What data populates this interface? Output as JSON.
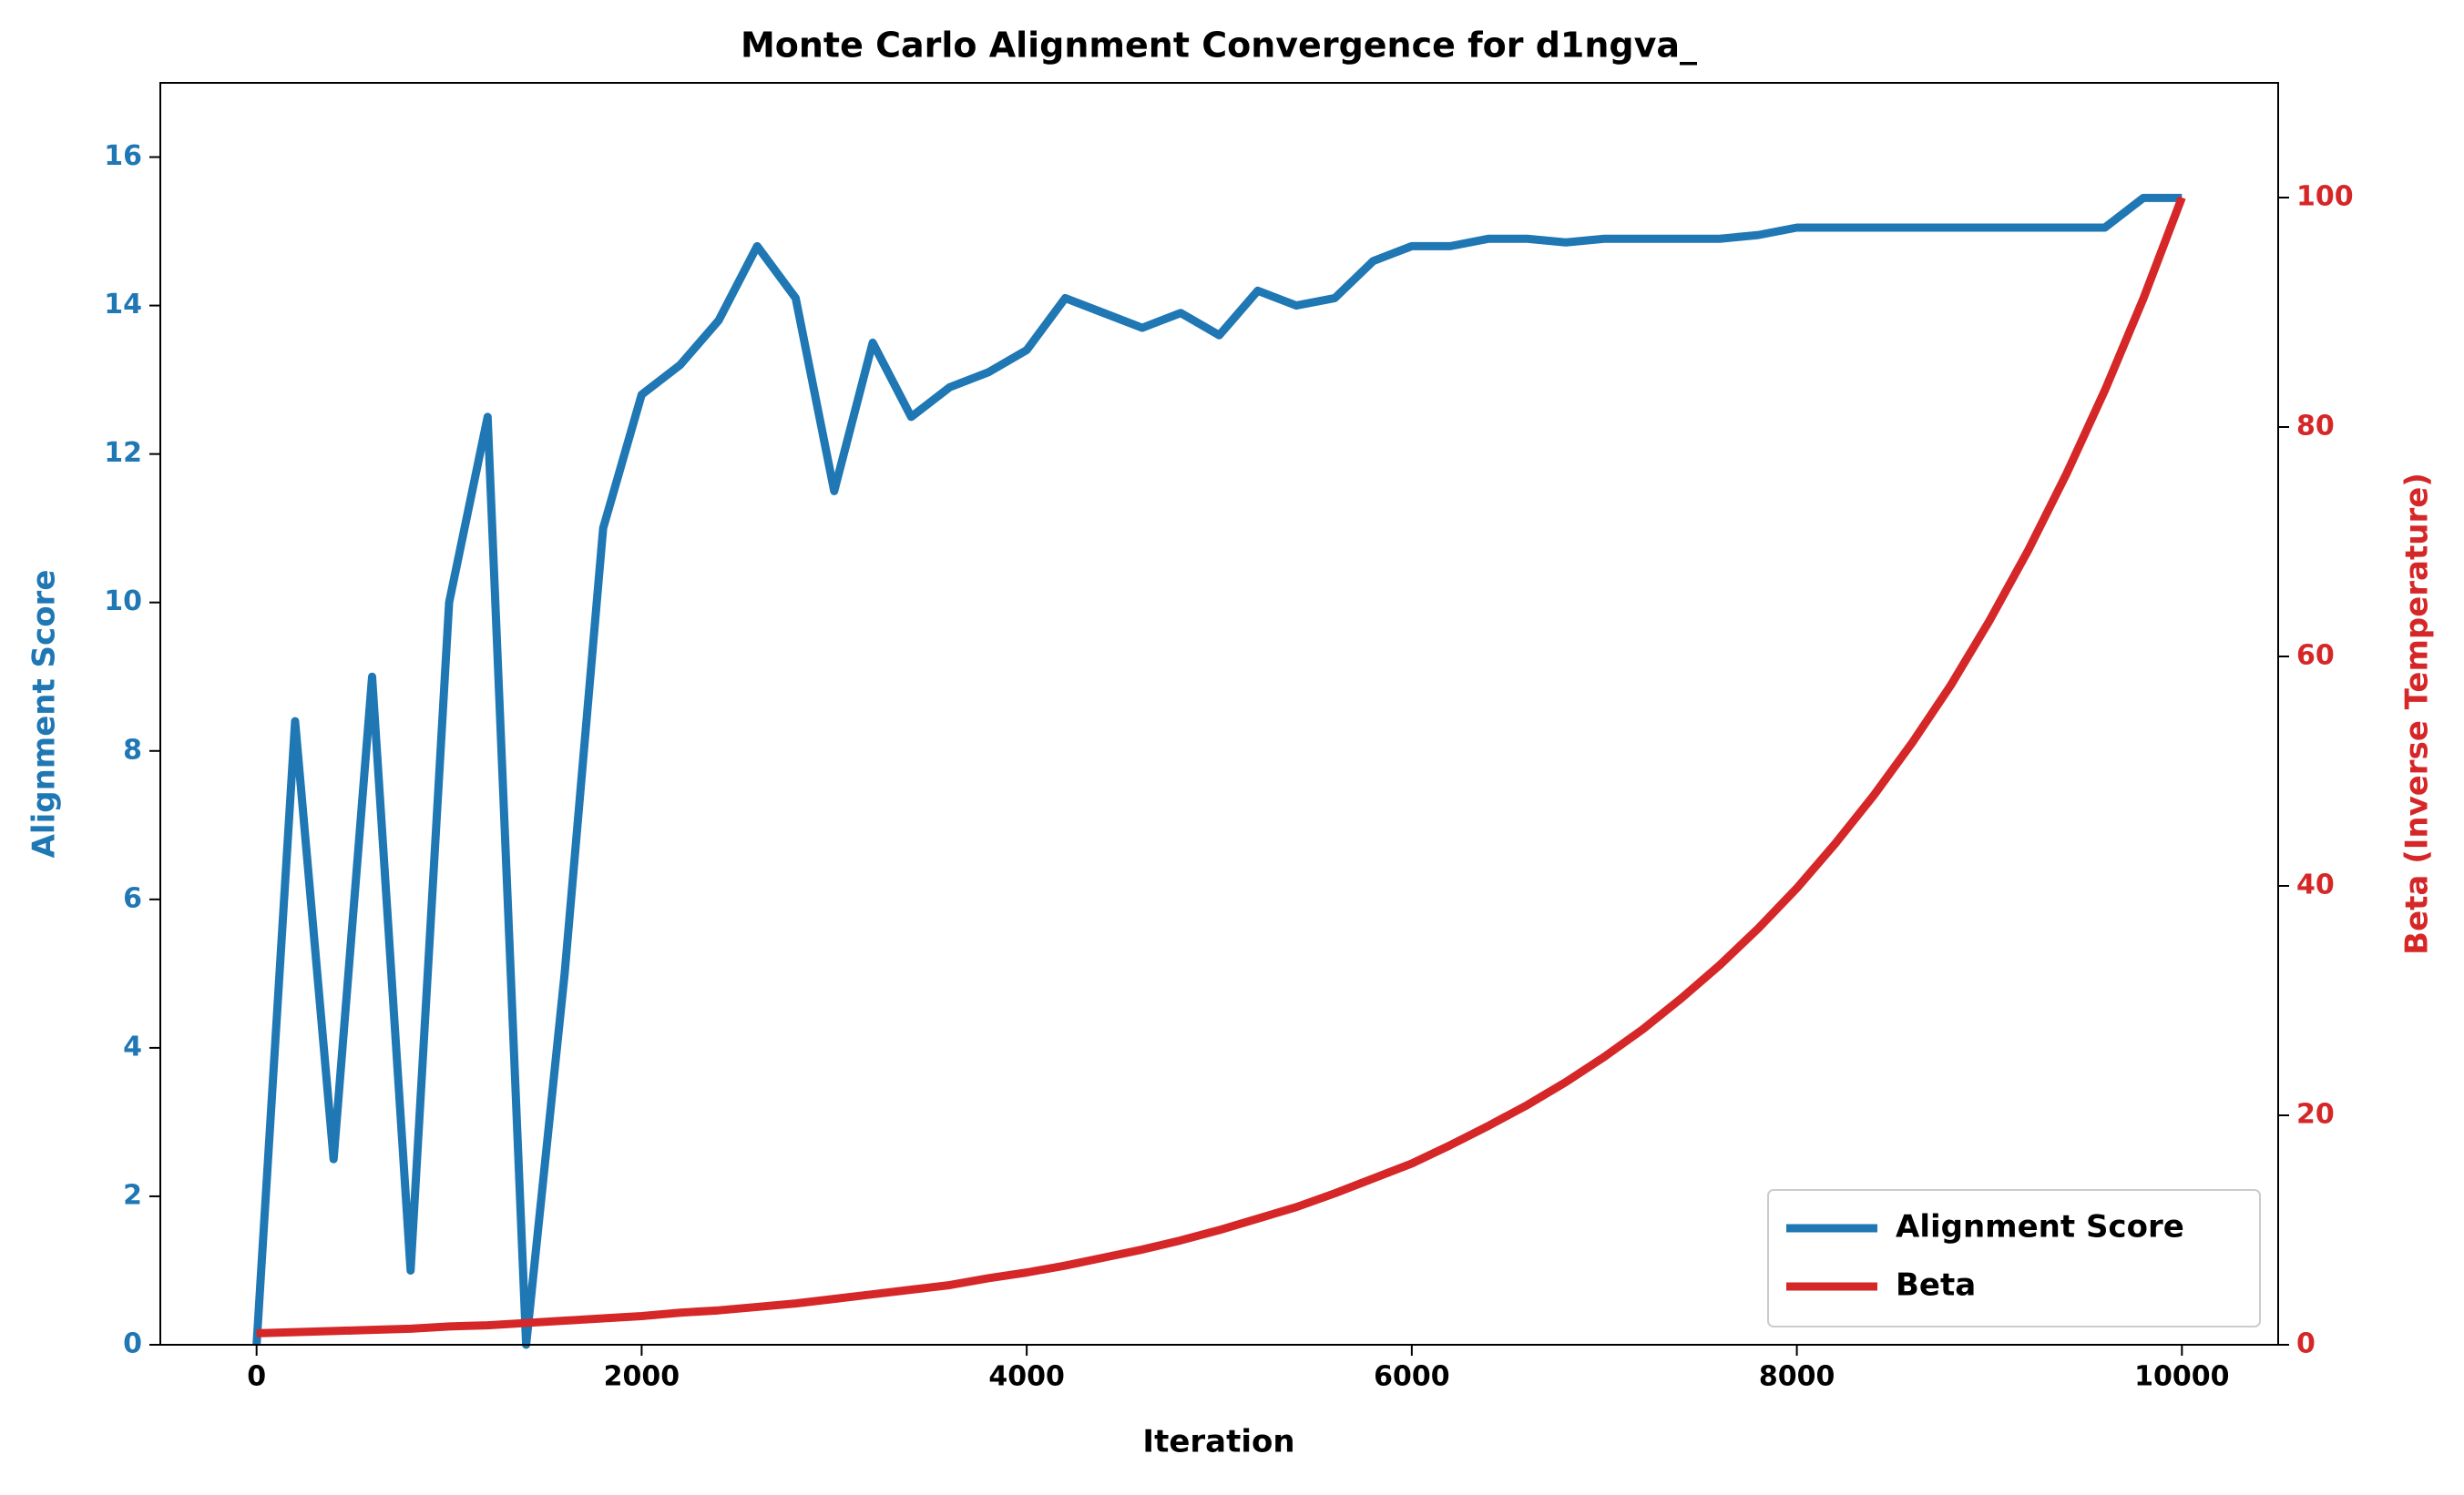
{
  "chart_data": {
    "type": "line",
    "title": "Monte Carlo Alignment Convergence for d1ngva_",
    "x_label": "Iteration",
    "y_label": "Alignment Score",
    "y2_label": "Beta (Inverse Temperature)",
    "x": [
      0,
      200,
      400,
      600,
      800,
      1000,
      1200,
      1400,
      1600,
      1800,
      2000,
      2200,
      2400,
      2600,
      2800,
      3000,
      3200,
      3400,
      3600,
      3800,
      4000,
      4200,
      4400,
      4600,
      4800,
      5000,
      5200,
      5400,
      5600,
      5800,
      6000,
      6200,
      6400,
      6600,
      6800,
      7000,
      7200,
      7400,
      7600,
      7800,
      8000,
      8200,
      8400,
      8600,
      8800,
      9000,
      9200,
      9400,
      9600,
      9800,
      10000
    ],
    "series": [
      {
        "name": "Alignment Score",
        "color": "#1f77b4",
        "axis": "y",
        "values": [
          0,
          8.4,
          2.5,
          9,
          1,
          10,
          12.5,
          0,
          5,
          11,
          12.8,
          13.2,
          13.8,
          14.8,
          14.1,
          11.5,
          13.5,
          12.5,
          12.9,
          13.1,
          13.4,
          14.1,
          13.9,
          13.7,
          13.9,
          13.6,
          14.2,
          14.0,
          14.1,
          14.6,
          14.8,
          14.8,
          14.9,
          14.9,
          14.85,
          14.9,
          14.9,
          14.9,
          14.9,
          14.95,
          15.05,
          15.05,
          15.05,
          15.05,
          15.05,
          15.05,
          15.05,
          15.05,
          15.05,
          15.45,
          15.45
        ]
      },
      {
        "name": "Beta",
        "color": "#d62728",
        "axis": "y2",
        "values": [
          1.0,
          1.1,
          1.2,
          1.3,
          1.4,
          1.6,
          1.7,
          1.9,
          2.1,
          2.3,
          2.5,
          2.8,
          3.0,
          3.3,
          3.6,
          4.0,
          4.4,
          4.8,
          5.2,
          5.8,
          6.3,
          6.9,
          7.6,
          8.3,
          9.1,
          10.0,
          11.0,
          12.0,
          13.2,
          14.5,
          15.8,
          17.4,
          19.1,
          20.9,
          22.9,
          25.1,
          27.5,
          30.2,
          33.1,
          36.3,
          39.8,
          43.7,
          47.9,
          52.5,
          57.5,
          63.1,
          69.2,
          75.9,
          83.2,
          91.2,
          100
        ]
      }
    ],
    "xlim": [
      -500,
      10500
    ],
    "xticks": [
      0,
      2000,
      4000,
      6000,
      8000,
      10000
    ],
    "ylim": [
      0,
      17
    ],
    "yticks": [
      0,
      2,
      4,
      6,
      8,
      10,
      12,
      14,
      16
    ],
    "y2lim": [
      0,
      110
    ],
    "y2ticks": [
      0,
      20,
      40,
      60,
      80,
      100
    ],
    "legend": "lower right"
  }
}
